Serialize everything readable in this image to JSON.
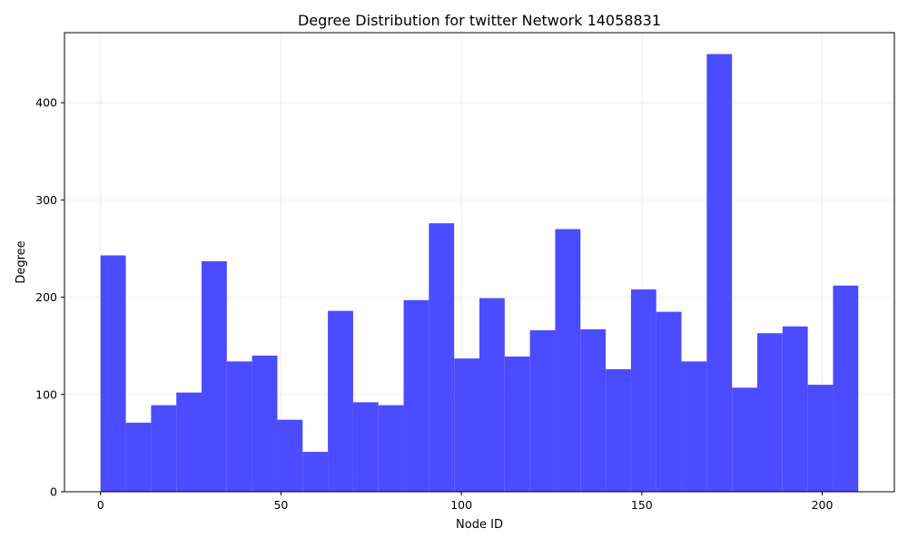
{
  "chart_data": {
    "type": "bar",
    "title": "Degree Distribution for twitter Network 14058831",
    "xlabel": "Node ID",
    "ylabel": "Degree",
    "xlim": [
      -10,
      220
    ],
    "ylim": [
      0,
      472
    ],
    "xticks": [
      0,
      50,
      100,
      150,
      200
    ],
    "yticks": [
      0,
      100,
      200,
      300,
      400
    ],
    "grid": true,
    "bar_color": "#4b4bff",
    "bin_width": 7,
    "bins": [
      {
        "x0": 0,
        "value": 243
      },
      {
        "x0": 7,
        "value": 71
      },
      {
        "x0": 14,
        "value": 89
      },
      {
        "x0": 21,
        "value": 102
      },
      {
        "x0": 28,
        "value": 237
      },
      {
        "x0": 35,
        "value": 134
      },
      {
        "x0": 42,
        "value": 140
      },
      {
        "x0": 49,
        "value": 74
      },
      {
        "x0": 56,
        "value": 41
      },
      {
        "x0": 63,
        "value": 186
      },
      {
        "x0": 70,
        "value": 92
      },
      {
        "x0": 77,
        "value": 89
      },
      {
        "x0": 84,
        "value": 197
      },
      {
        "x0": 91,
        "value": 276
      },
      {
        "x0": 98,
        "value": 137
      },
      {
        "x0": 105,
        "value": 199
      },
      {
        "x0": 112,
        "value": 139
      },
      {
        "x0": 119,
        "value": 166
      },
      {
        "x0": 126,
        "value": 270
      },
      {
        "x0": 133,
        "value": 167
      },
      {
        "x0": 140,
        "value": 126
      },
      {
        "x0": 147,
        "value": 208
      },
      {
        "x0": 154,
        "value": 185
      },
      {
        "x0": 161,
        "value": 134
      },
      {
        "x0": 168,
        "value": 450
      },
      {
        "x0": 175,
        "value": 107
      },
      {
        "x0": 182,
        "value": 163
      },
      {
        "x0": 189,
        "value": 170
      },
      {
        "x0": 196,
        "value": 110
      },
      {
        "x0": 203,
        "value": 212
      }
    ]
  }
}
